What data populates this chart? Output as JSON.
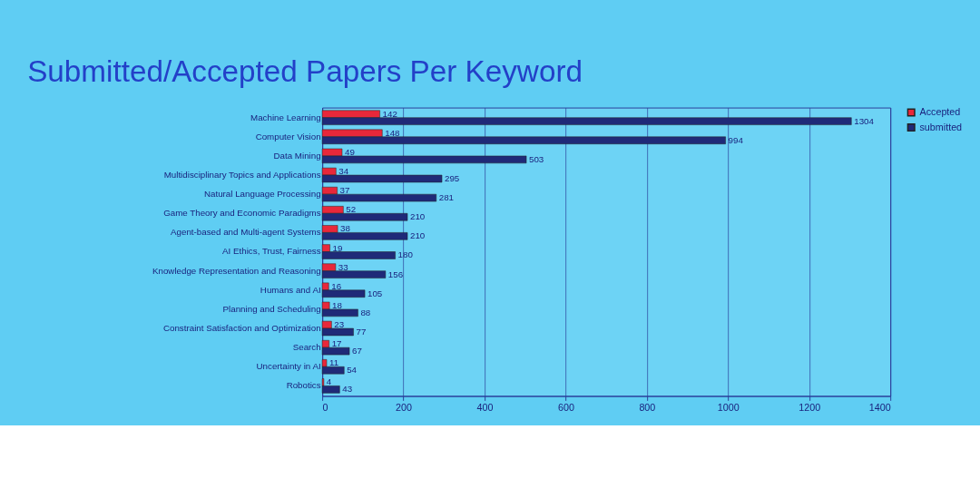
{
  "chart_data": {
    "type": "bar",
    "orientation": "horizontal",
    "title": "Submitted/Accepted Papers Per Keyword",
    "categories": [
      "Machine Learning",
      "Computer Vision",
      "Data Mining",
      "Multidisciplinary Topics and Applications",
      "Natural Language Processing",
      "Game Theory and Economic Paradigms",
      "Agent-based and Multi-agent Systems",
      "AI Ethics, Trust, Fairness",
      "Knowledge Representation and Reasoning",
      "Humans and AI",
      "Planning and Scheduling",
      "Constraint Satisfaction and Optimization",
      "Search",
      "Uncertainty in AI",
      "Robotics"
    ],
    "series": [
      {
        "name": "Accepted",
        "color": "#e8283a",
        "values": [
          142,
          148,
          49,
          34,
          37,
          52,
          38,
          19,
          33,
          16,
          18,
          23,
          17,
          11,
          4
        ]
      },
      {
        "name": "submitted",
        "color": "#1f2a78",
        "values": [
          1304,
          994,
          503,
          295,
          281,
          210,
          210,
          180,
          156,
          105,
          88,
          77,
          67,
          54,
          43
        ]
      }
    ],
    "xlim": [
      0,
      1400
    ],
    "xticks": [
      0,
      200,
      400,
      600,
      800,
      1000,
      1200,
      1400
    ],
    "grid": "x",
    "legend": "right",
    "data_labels": true
  }
}
